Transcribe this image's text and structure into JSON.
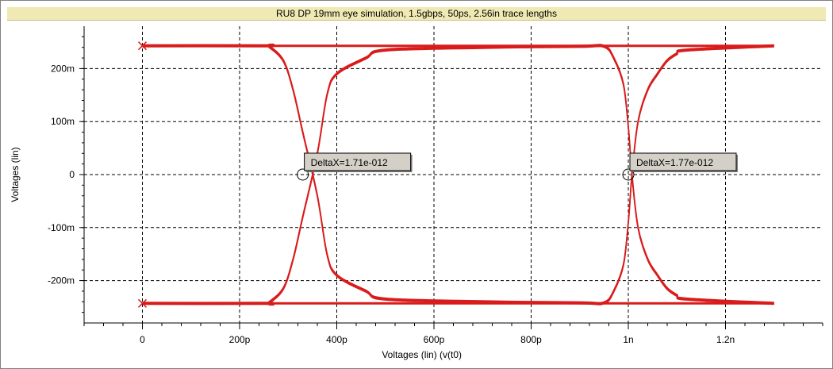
{
  "window": {
    "title": "RU8 DP 19mm eye simulation, 1.5gbps, 50ps, 2.56in trace lengths"
  },
  "chart_data": {
    "type": "line",
    "title": "RU8 DP 19mm eye simulation, 1.5gbps, 50ps, 2.56in trace lengths",
    "xlabel": "Voltages (lin) (v(t0)",
    "ylabel": "Voltages (lin)",
    "x_unit": "s",
    "y_unit": "V",
    "xlim": [
      -1.2e-10,
      1.4e-09
    ],
    "ylim": [
      -0.28,
      0.28
    ],
    "x_ticks": [
      {
        "value": 0,
        "label": "0"
      },
      {
        "value": 2e-10,
        "label": "200p"
      },
      {
        "value": 4e-10,
        "label": "400p"
      },
      {
        "value": 6e-10,
        "label": "600p"
      },
      {
        "value": 8e-10,
        "label": "800p"
      },
      {
        "value": 1e-09,
        "label": "1n"
      },
      {
        "value": 1.2e-09,
        "label": "1.2n"
      }
    ],
    "y_ticks": [
      {
        "value": 0.2,
        "label": "200m"
      },
      {
        "value": 0.1,
        "label": "100m"
      },
      {
        "value": 0,
        "label": "0"
      },
      {
        "value": -0.1,
        "label": "-100m"
      },
      {
        "value": -0.2,
        "label": "-200m"
      }
    ],
    "grid": true,
    "colors": {
      "trace": "#d81c1c",
      "grid": "#000000",
      "label_bg": "#d4d0c8"
    },
    "series": [
      {
        "x": [
          0,
          2.5e-10,
          2.6e-10,
          2.9e-10,
          3.1e-10,
          3.3e-10,
          3.6e-10,
          3.8e-10,
          4e-10,
          4.6e-10,
          5e-10,
          7e-10,
          9e-10,
          9.5e-10,
          9.7e-10,
          9.9e-10,
          1e-09,
          1.0075e-09,
          1.02e-09,
          1.04e-09,
          1.06e-09,
          1.08e-09,
          1.1e-09,
          1.12e-09,
          1.3e-09
        ],
        "y": [
          0.243,
          0.243,
          0.242,
          0.215,
          0.16,
          0.08,
          -0.04,
          -0.15,
          -0.19,
          -0.22,
          -0.235,
          -0.24,
          -0.242,
          -0.242,
          -0.22,
          -0.17,
          -0.09,
          0,
          0.1,
          0.16,
          0.19,
          0.215,
          0.228,
          0.235,
          0.243
        ]
      },
      {
        "x": [
          0,
          2.5e-10,
          2.6e-10,
          2.9e-10,
          3.1e-10,
          3.3e-10,
          3.6e-10,
          3.8e-10,
          4e-10,
          4.6e-10,
          5e-10,
          7e-10,
          9e-10,
          9.5e-10,
          9.7e-10,
          9.9e-10,
          1e-09,
          1.0075e-09,
          1.02e-09,
          1.04e-09,
          1.06e-09,
          1.08e-09,
          1.1e-09,
          1.12e-09,
          1.3e-09
        ],
        "y": [
          -0.243,
          -0.243,
          -0.242,
          -0.215,
          -0.16,
          -0.08,
          0.04,
          0.15,
          0.19,
          0.22,
          0.235,
          0.24,
          0.242,
          0.242,
          0.22,
          0.17,
          0.09,
          0,
          -0.1,
          -0.16,
          -0.19,
          -0.215,
          -0.228,
          -0.235,
          -0.243
        ]
      }
    ],
    "annotations": [
      {
        "label": "DeltaX=1.71e-012",
        "x": 3.3e-10,
        "y": 0
      },
      {
        "label": "DeltaX=1.77e-012",
        "x": 1e-09,
        "y": 0
      }
    ]
  }
}
